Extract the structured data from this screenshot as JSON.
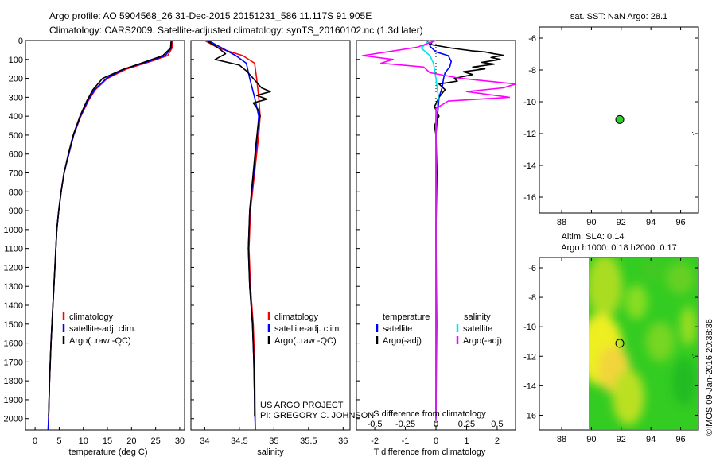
{
  "header": {
    "line1": "Argo profile: AO 5904568_26 31-Dec-2015 20151231_586 11.117S 91.905E",
    "line2": "Climatology: CARS2009. Satellite-adjusted climatology: synTS_20160102.nc (1.3d later)"
  },
  "credits": {
    "line1": "US ARGO PROJECT",
    "line2": "PI: GREGORY C. JOHNSON",
    "watermark": "©IMOS 09-Jan-2016 20:38:36"
  },
  "colors": {
    "climatology": "#ff0000",
    "satellite": "#0000ff",
    "argo": "#000000",
    "salinity_satellite": "#00e5ee",
    "salinity_argo": "#ff00ff",
    "float_marker": "#33cc33"
  },
  "chart_data": [
    {
      "type": "line",
      "panel": "temperature",
      "xlabel": "temperature (deg C)",
      "ylabel": "",
      "xlim": [
        -2,
        31
      ],
      "ylim": [
        2060,
        0
      ],
      "xticks": [
        0,
        5,
        10,
        15,
        20,
        25,
        30
      ],
      "yticks": [
        0,
        100,
        200,
        300,
        400,
        500,
        600,
        700,
        800,
        900,
        1000,
        1100,
        1200,
        1300,
        1400,
        1500,
        1600,
        1700,
        1800,
        1900,
        2000
      ],
      "legend": [
        "climatology",
        "satellite-adj. clim.",
        "Argo(..raw -QC)"
      ],
      "series": [
        {
          "name": "climatology",
          "color": "#ff0000",
          "points": [
            [
              28.5,
              0
            ],
            [
              28.4,
              40
            ],
            [
              27.5,
              80
            ],
            [
              24,
              110
            ],
            [
              19,
              150
            ],
            [
              15,
              200
            ],
            [
              12.5,
              260
            ],
            [
              11,
              320
            ],
            [
              9.5,
              400
            ],
            [
              8,
              500
            ],
            [
              7,
              600
            ],
            [
              6,
              700
            ],
            [
              5.4,
              800
            ],
            [
              4.9,
              900
            ],
            [
              4.5,
              1000
            ],
            [
              4.1,
              1200
            ],
            [
              3.7,
              1400
            ],
            [
              3.3,
              1600
            ],
            [
              3.0,
              1800
            ],
            [
              2.8,
              2000
            ],
            [
              2.7,
              2060
            ]
          ]
        },
        {
          "name": "satellite-adj. clim.",
          "color": "#0000ff",
          "points": [
            [
              28.3,
              0
            ],
            [
              28.2,
              40
            ],
            [
              27.0,
              80
            ],
            [
              23,
              115
            ],
            [
              18.5,
              150
            ],
            [
              14.8,
              200
            ],
            [
              12.3,
              260
            ],
            [
              10.9,
              320
            ],
            [
              9.4,
              400
            ],
            [
              8,
              500
            ],
            [
              7,
              600
            ],
            [
              6,
              700
            ],
            [
              5.4,
              800
            ],
            [
              4.9,
              900
            ],
            [
              4.5,
              1000
            ],
            [
              4.1,
              1200
            ],
            [
              3.7,
              1400
            ],
            [
              3.3,
              1600
            ],
            [
              3.0,
              1800
            ],
            [
              2.8,
              2000
            ],
            [
              2.7,
              2060
            ]
          ]
        },
        {
          "name": "Argo(..raw -QC)",
          "color": "#000000",
          "points": [
            [
              28.2,
              5
            ],
            [
              28.1,
              40
            ],
            [
              26.5,
              80
            ],
            [
              22,
              120
            ],
            [
              18,
              155
            ],
            [
              14,
              200
            ],
            [
              12,
              260
            ],
            [
              10.7,
              320
            ],
            [
              9.3,
              400
            ],
            [
              7.9,
              500
            ],
            [
              6.9,
              600
            ],
            [
              6,
              700
            ],
            [
              5.4,
              800
            ],
            [
              4.9,
              900
            ],
            [
              4.5,
              1000
            ],
            [
              4.1,
              1200
            ],
            [
              3.7,
              1400
            ],
            [
              3.3,
              1600
            ],
            [
              3.0,
              1800
            ],
            [
              2.8,
              1990
            ]
          ]
        }
      ]
    },
    {
      "type": "line",
      "panel": "salinity",
      "xlabel": "salinity",
      "ylabel": "",
      "xlim": [
        33.8,
        36.1
      ],
      "ylim": [
        2060,
        0
      ],
      "xticks": [
        34,
        34.5,
        35,
        35.5,
        36
      ],
      "legend": [
        "climatology",
        "satellite-adj. clim.",
        "Argo(..raw -QC)"
      ],
      "series": [
        {
          "name": "climatology",
          "color": "#ff0000",
          "points": [
            [
              34.0,
              0
            ],
            [
              34.2,
              40
            ],
            [
              34.55,
              80
            ],
            [
              34.72,
              120
            ],
            [
              34.75,
              200
            ],
            [
              34.78,
              300
            ],
            [
              34.8,
              400
            ],
            [
              34.78,
              500
            ],
            [
              34.72,
              700
            ],
            [
              34.66,
              900
            ],
            [
              34.64,
              1100
            ],
            [
              34.66,
              1300
            ],
            [
              34.7,
              1500
            ],
            [
              34.72,
              1700
            ],
            [
              34.73,
              2060
            ]
          ]
        },
        {
          "name": "satellite-adj. clim.",
          "color": "#0000ff",
          "points": [
            [
              34.05,
              0
            ],
            [
              34.25,
              40
            ],
            [
              34.45,
              80
            ],
            [
              34.6,
              120
            ],
            [
              34.65,
              200
            ],
            [
              34.72,
              300
            ],
            [
              34.78,
              400
            ],
            [
              34.76,
              500
            ],
            [
              34.71,
              700
            ],
            [
              34.65,
              900
            ],
            [
              34.63,
              1100
            ],
            [
              34.65,
              1300
            ],
            [
              34.69,
              1500
            ],
            [
              34.71,
              1700
            ],
            [
              34.72,
              1900
            ],
            [
              34.73,
              2060
            ]
          ]
        },
        {
          "name": "Argo(..raw -QC)",
          "color": "#000000",
          "points": [
            [
              34.05,
              5
            ],
            [
              34.2,
              40
            ],
            [
              34.3,
              70
            ],
            [
              34.15,
              100
            ],
            [
              34.5,
              130
            ],
            [
              34.6,
              160
            ],
            [
              34.7,
              200
            ],
            [
              34.82,
              250
            ],
            [
              34.95,
              270
            ],
            [
              34.75,
              290
            ],
            [
              34.9,
              310
            ],
            [
              34.7,
              330
            ],
            [
              34.78,
              370
            ],
            [
              34.8,
              400
            ],
            [
              34.77,
              450
            ],
            [
              34.74,
              550
            ],
            [
              34.7,
              700
            ],
            [
              34.65,
              900
            ],
            [
              34.63,
              1100
            ],
            [
              34.65,
              1300
            ],
            [
              34.69,
              1500
            ],
            [
              34.71,
              1700
            ],
            [
              34.72,
              1900
            ],
            [
              34.72,
              1990
            ]
          ]
        }
      ]
    },
    {
      "type": "line",
      "panel": "difference",
      "xlabel": "T difference from climatology",
      "xlabel_top": "S difference from climatology",
      "xlim": [
        -2.6,
        2.6
      ],
      "ylim": [
        2060,
        0
      ],
      "xticks": [
        -2,
        -1,
        0,
        1,
        2
      ],
      "xtick_labels": [
        "-2",
        "-1",
        "0",
        "1",
        "2"
      ],
      "s_ticks": [
        -0.5,
        -0.25,
        0,
        0.25,
        0.5
      ],
      "s_tick_labels": [
        "-0.5",
        "-0.25",
        "0",
        "0.25",
        "0.5"
      ],
      "legend_left_title": "temperature",
      "legend_right_title": "salinity",
      "legend": [
        "satellite",
        "Argo(-adj)",
        "satellite",
        "Argo(-adj)"
      ],
      "series": [
        {
          "name": "satellite",
          "group": "temperature",
          "color": "#0000ff",
          "points": [
            [
              -0.1,
              0
            ],
            [
              -0.2,
              30
            ],
            [
              0,
              60
            ],
            [
              0.4,
              80
            ],
            [
              0.5,
              110
            ],
            [
              0.45,
              140
            ],
            [
              0.3,
              170
            ],
            [
              0.25,
              200
            ],
            [
              0.2,
              250
            ],
            [
              0.1,
              300
            ],
            [
              0.05,
              400
            ],
            [
              0,
              500
            ],
            [
              0,
              2000
            ]
          ]
        },
        {
          "name": "Argo(-adj)",
          "group": "temperature",
          "color": "#000000",
          "points": [
            [
              -0.3,
              0
            ],
            [
              -0.2,
              20
            ],
            [
              0.5,
              40
            ],
            [
              1.2,
              55
            ],
            [
              1.6,
              60
            ],
            [
              1.9,
              70
            ],
            [
              2.2,
              78
            ],
            [
              1.8,
              90
            ],
            [
              2.1,
              100
            ],
            [
              1.5,
              115
            ],
            [
              1.9,
              125
            ],
            [
              1.2,
              140
            ],
            [
              1.6,
              150
            ],
            [
              0.9,
              165
            ],
            [
              1.2,
              180
            ],
            [
              0.6,
              200
            ],
            [
              0.7,
              215
            ],
            [
              0.1,
              230
            ],
            [
              0.3,
              260
            ],
            [
              0.1,
              300
            ],
            [
              -0.05,
              350
            ],
            [
              0.1,
              400
            ],
            [
              -0.05,
              450
            ],
            [
              0,
              500
            ],
            [
              0.03,
              700
            ],
            [
              0,
              1000
            ],
            [
              0.02,
              1500
            ],
            [
              0,
              1990
            ]
          ]
        },
        {
          "name": "satellite",
          "group": "salinity",
          "color": "#00e5ee",
          "points": [
            [
              -0.05,
              0
            ],
            [
              -0.12,
              40
            ],
            [
              -0.05,
              80
            ],
            [
              -0.02,
              120
            ],
            [
              0,
              200
            ],
            [
              0.02,
              300
            ],
            [
              0,
              400
            ],
            [
              0,
              2000
            ]
          ]
        },
        {
          "name": "Argo(-adj)",
          "group": "salinity",
          "color": "#ff00ff",
          "points": [
            [
              0,
              0
            ],
            [
              -0.15,
              35
            ],
            [
              -0.4,
              60
            ],
            [
              -0.6,
              80
            ],
            [
              -0.35,
              100
            ],
            [
              -0.45,
              120
            ],
            [
              -0.1,
              140
            ],
            [
              -0.05,
              170
            ],
            [
              0.2,
              200
            ],
            [
              0.65,
              230
            ],
            [
              0.55,
              250
            ],
            [
              0.25,
              270
            ],
            [
              0.6,
              300
            ],
            [
              0.1,
              320
            ],
            [
              0,
              360
            ],
            [
              0,
              2000
            ]
          ]
        }
      ]
    },
    {
      "type": "scatter",
      "panel": "sst_map",
      "title": "sat. SST: NaN Argo: 28.1",
      "xlim": [
        86.5,
        97.2
      ],
      "ylim": [
        -17,
        -5.3
      ],
      "xticks": [
        88,
        90,
        92,
        94,
        96
      ],
      "yticks": [
        -6,
        -8,
        -10,
        -12,
        -14,
        -16
      ],
      "points": [
        {
          "x": 91.905,
          "y": -11.117
        }
      ],
      "track": [
        [
          96.8,
          -11.9
        ],
        [
          96.9,
          -12.15
        ]
      ]
    },
    {
      "type": "heatmap",
      "panel": "sla_map",
      "title": "Altim. SLA: 0.14",
      "subtitle": "Argo h1000: 0.18 h2000: 0.17",
      "xlim": [
        86.5,
        97.2
      ],
      "ylim": [
        -17,
        -5.3
      ],
      "xticks": [
        88,
        90,
        92,
        94,
        96
      ],
      "yticks": [
        -6,
        -8,
        -10,
        -12,
        -14,
        -16
      ],
      "data_xlim": [
        90,
        97.2
      ],
      "points": [
        {
          "x": 91.905,
          "y": -11.117
        }
      ],
      "track": [
        [
          96.8,
          -11.9
        ],
        [
          96.9,
          -12.15
        ]
      ]
    }
  ]
}
